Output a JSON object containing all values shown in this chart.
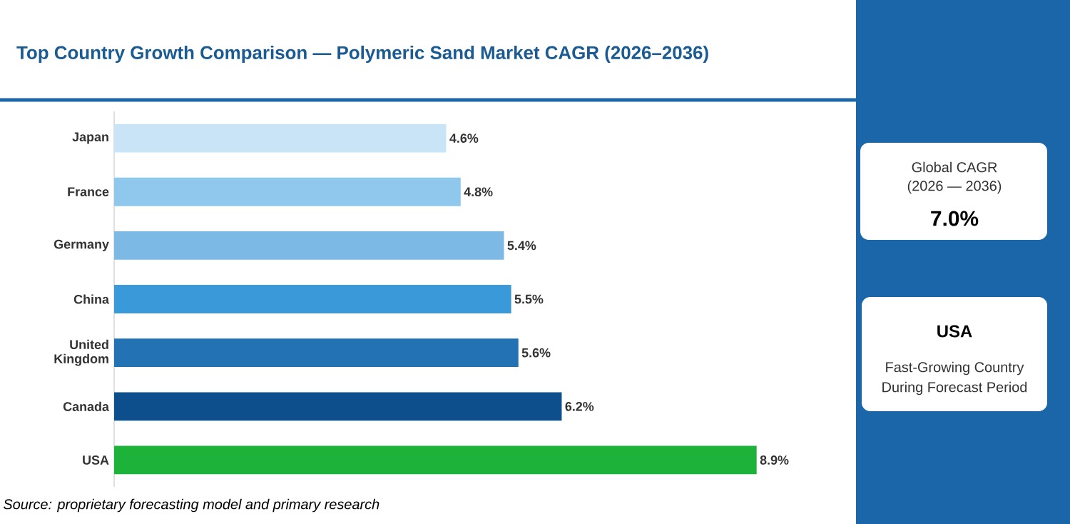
{
  "chart_data": {
    "type": "bar",
    "orientation": "horizontal",
    "title": "Top Country Growth Comparison — Polymeric Sand Market  CAGR (2026–2036)",
    "categories": [
      "Japan",
      "France",
      "Germany",
      "China",
      "United Kingdom",
      "Canada",
      "USA"
    ],
    "values": [
      4.6,
      4.8,
      5.4,
      5.5,
      5.6,
      6.2,
      8.9
    ],
    "value_labels": [
      "4.6%",
      "4.8%",
      "5.4%",
      "5.5%",
      "5.6%",
      "6.2%",
      "8.9%"
    ],
    "colors": [
      "#c9e4f6",
      "#8fc8ec",
      "#7cb9e4",
      "#3a9ad9",
      "#2272b4",
      "#0d4f8c",
      "#1db33a"
    ],
    "tick_labels": "y",
    "annotations": [
      "Source: proprietary forecasting model and primary research",
      "Global CAGR",
      "(2026 — 2036)",
      "7.0%",
      "USA",
      "Fast-Growing Country",
      "During Forecast Period"
    ]
  }
}
